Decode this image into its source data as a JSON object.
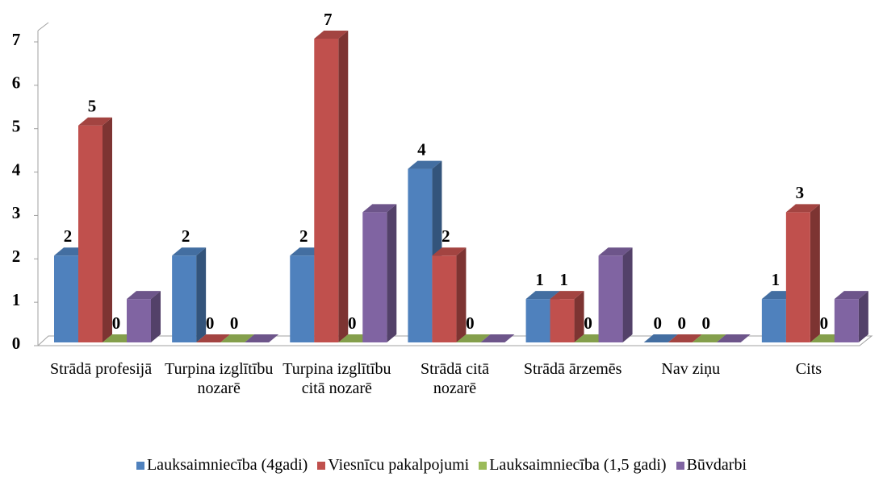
{
  "chart_data": {
    "type": "bar3d",
    "categories": [
      "Strādā profesijā",
      "Turpina izglītību nozarē",
      "Turpina izglītību citā nozarē",
      "Strādā citā nozarē",
      "Strādā ārzemēs",
      "Nav ziņu",
      "Cits"
    ],
    "series": [
      {
        "name": "Lauksaimniecība (4gadi)",
        "color": "#4f81bd",
        "values": [
          2,
          2,
          2,
          4,
          1,
          0,
          1
        ],
        "data_labels": true
      },
      {
        "name": "Viesnīcu pakalpojumi",
        "color": "#c0504d",
        "values": [
          5,
          0,
          7,
          2,
          1,
          0,
          3
        ],
        "data_labels": true
      },
      {
        "name": "Lauksaimniecība (1,5 gadi)",
        "color": "#9bbb59",
        "values": [
          0,
          0,
          0,
          0,
          0,
          0,
          0
        ],
        "data_labels": true
      },
      {
        "name": "Būvdarbi",
        "color": "#8064a2",
        "values": [
          1,
          0,
          3,
          0,
          2,
          0,
          1
        ],
        "data_labels": false
      }
    ],
    "ylim": [
      0,
      7
    ],
    "yticks": [
      0,
      1,
      2,
      3,
      4,
      5,
      6,
      7
    ],
    "legend": "bottom"
  }
}
